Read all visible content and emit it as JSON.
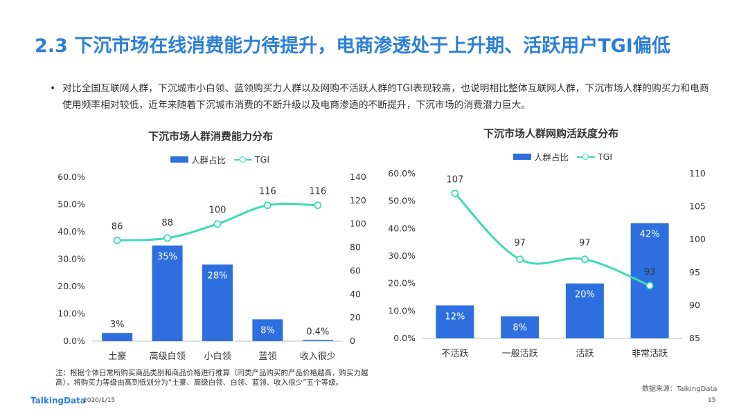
{
  "title": "2.3 下沉市场在线消费能力待提升，电商渗透处于上升期、活跃用户TGI偏低",
  "bullet": {
    "dot": "•",
    "text": "对比全国互联网人群，下沉城市小白领、蓝领购买力人群以及网购不活跃人群的TGI表现较高，也说明相比整体互联网人群，下沉市场人群的购买力和电商使用频率相对较低，近年来随着下沉城市消费的不断升级以及电商渗透的不断提升，下沉市场的消费潜力巨大。"
  },
  "colors": {
    "bar": "#2e6fe0",
    "line": "#3ddbb4",
    "title": "#2b7fd8",
    "axis": "#bfbfbf"
  },
  "chart_data": [
    {
      "type": "bar",
      "title": "下沉市场人群消费能力分布",
      "categories": [
        "土豪",
        "高级白领",
        "小白领",
        "蓝领",
        "收入很少"
      ],
      "series": [
        {
          "name": "人群占比",
          "type": "bar",
          "axis": "left",
          "values": [
            3,
            35,
            28,
            8,
            0.4
          ],
          "labels": [
            "3%",
            "35%",
            "28%",
            "8%",
            "0.4%"
          ]
        },
        {
          "name": "TGI",
          "type": "line",
          "axis": "right",
          "values": [
            86,
            88,
            100,
            116,
            116
          ],
          "labels": [
            "86",
            "88",
            "100",
            "116",
            "116"
          ]
        }
      ],
      "y_left": {
        "min": 0,
        "max": 60,
        "ticks": [
          "0.0%",
          "10.0%",
          "20.0%",
          "30.0%",
          "40.0%",
          "50.0%",
          "60.0%"
        ]
      },
      "y_right": {
        "min": 0,
        "max": 140,
        "ticks": [
          "0",
          "20",
          "40",
          "60",
          "80",
          "100",
          "120",
          "140"
        ]
      },
      "legend_position": "top",
      "grid": false
    },
    {
      "type": "bar",
      "title": "下沉市场人群网购活跃度分布",
      "categories": [
        "不活跃",
        "一般活跃",
        "活跃",
        "非常活跃"
      ],
      "series": [
        {
          "name": "人群占比",
          "type": "bar",
          "axis": "left",
          "values": [
            12,
            8,
            20,
            42
          ],
          "labels": [
            "12%",
            "8%",
            "20%",
            "42%"
          ]
        },
        {
          "name": "TGI",
          "type": "line",
          "axis": "right",
          "values": [
            107,
            97,
            97,
            93
          ],
          "labels": [
            "107",
            "97",
            "97",
            "93"
          ]
        }
      ],
      "y_left": {
        "min": 0,
        "max": 60,
        "ticks": [
          "0.0%",
          "10.0%",
          "20.0%",
          "30.0%",
          "40.0%",
          "50.0%",
          "60.0%"
        ]
      },
      "y_right": {
        "min": 85,
        "max": 110,
        "ticks": [
          "85",
          "90",
          "95",
          "100",
          "105",
          "110"
        ]
      },
      "legend_position": "top",
      "grid": false
    }
  ],
  "note": "注：根据个体日常所购买商品类别和商品价格进行推算（同类产品购买的产品价格越高，购买力越高），将购买力等级由高到低划分为“土豪、高级白领、白领、蓝领、收入很少”五个等级。",
  "source": "数据来源：TalkingData",
  "footer": {
    "logo": "TalkingData",
    "date": "2020/1/15",
    "page": "15"
  }
}
